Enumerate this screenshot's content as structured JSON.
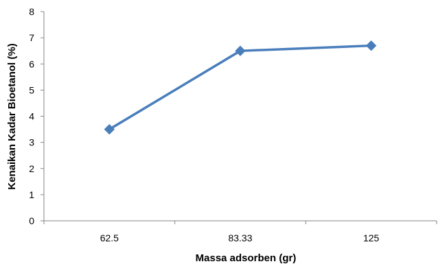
{
  "chart_data": {
    "type": "line",
    "title": "",
    "xlabel": "Massa adsorben (gr)",
    "ylabel": "Kenaikan Kadar Bioetanol (%)",
    "categories": [
      "62.5",
      "83.33",
      "125"
    ],
    "ylim": [
      0,
      8
    ],
    "y_ticks": [
      "0",
      "1",
      "2",
      "3",
      "4",
      "5",
      "6",
      "7",
      "8"
    ],
    "grid": false,
    "legend": "none",
    "series": [
      {
        "values": [
          3.5,
          6.5,
          6.7
        ],
        "color": "#4a7ebb",
        "marker": "diamond"
      }
    ]
  }
}
